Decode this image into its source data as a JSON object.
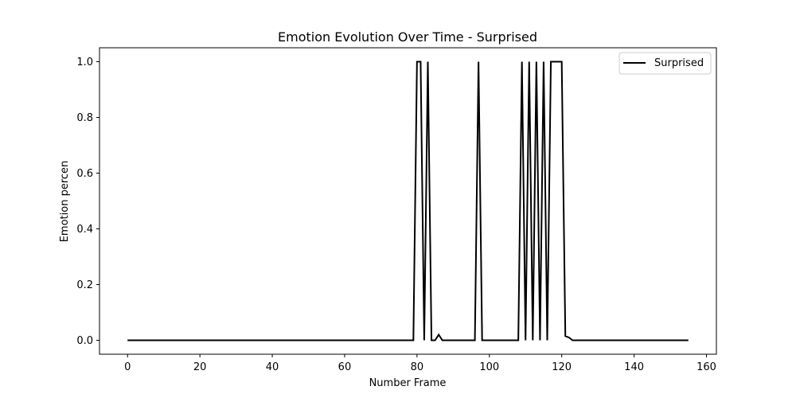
{
  "chart_data": {
    "type": "line",
    "title": "Emotion Evolution Over Time - Surprised",
    "xlabel": "Number Frame",
    "ylabel": "Emotion percen",
    "xlim": [
      -7.75,
      162.75
    ],
    "ylim": [
      -0.05,
      1.05
    ],
    "xticks": [
      0,
      20,
      40,
      60,
      80,
      100,
      120,
      140,
      160
    ],
    "yticks": [
      0.0,
      0.2,
      0.4,
      0.6,
      0.8,
      1.0
    ],
    "xtick_labels": [
      "0",
      "20",
      "40",
      "60",
      "80",
      "100",
      "120",
      "140",
      "160"
    ],
    "ytick_labels": [
      "0.0",
      "0.2",
      "0.4",
      "0.6",
      "0.8",
      "1.0"
    ],
    "grid": false,
    "legend_position": "top-right",
    "colors": {
      "Surprised": "#000000"
    },
    "series": [
      {
        "name": "Surprised",
        "x": [
          0,
          1,
          2,
          3,
          4,
          5,
          6,
          7,
          8,
          9,
          10,
          11,
          12,
          13,
          14,
          15,
          16,
          17,
          18,
          19,
          20,
          21,
          22,
          23,
          24,
          25,
          26,
          27,
          28,
          29,
          30,
          31,
          32,
          33,
          34,
          35,
          36,
          37,
          38,
          39,
          40,
          41,
          42,
          43,
          44,
          45,
          46,
          47,
          48,
          49,
          50,
          51,
          52,
          53,
          54,
          55,
          56,
          57,
          58,
          59,
          60,
          61,
          62,
          63,
          64,
          65,
          66,
          67,
          68,
          69,
          70,
          71,
          72,
          73,
          74,
          75,
          76,
          77,
          78,
          79,
          80,
          81,
          82,
          83,
          84,
          85,
          86,
          87,
          88,
          89,
          90,
          91,
          92,
          93,
          94,
          95,
          96,
          97,
          98,
          99,
          100,
          101,
          102,
          103,
          104,
          105,
          106,
          107,
          108,
          109,
          110,
          111,
          112,
          113,
          114,
          115,
          116,
          117,
          118,
          119,
          120,
          121,
          122,
          123,
          124,
          125,
          126,
          127,
          128,
          129,
          130,
          131,
          132,
          133,
          134,
          135,
          136,
          137,
          138,
          139,
          140,
          141,
          142,
          143,
          144,
          145,
          146,
          147,
          148,
          149,
          150,
          151,
          152,
          153,
          154,
          155
        ],
        "values": [
          0,
          0,
          0,
          0,
          0,
          0,
          0,
          0,
          0,
          0,
          0,
          0,
          0,
          0,
          0,
          0,
          0,
          0,
          0,
          0,
          0,
          0,
          0,
          0,
          0,
          0,
          0,
          0,
          0,
          0,
          0,
          0,
          0,
          0,
          0,
          0,
          0,
          0,
          0,
          0,
          0,
          0,
          0,
          0,
          0,
          0,
          0,
          0,
          0,
          0,
          0,
          0,
          0,
          0,
          0,
          0,
          0,
          0,
          0,
          0,
          0,
          0,
          0,
          0,
          0,
          0,
          0,
          0,
          0,
          0,
          0,
          0,
          0,
          0,
          0,
          0,
          0,
          0,
          0,
          0,
          1,
          1,
          0,
          1,
          0,
          0,
          0.02,
          0,
          0,
          0,
          0,
          0,
          0,
          0,
          0,
          0,
          0,
          1,
          0,
          0,
          0,
          0,
          0,
          0,
          0,
          0,
          0,
          0,
          0,
          1,
          0,
          1,
          0,
          1,
          0,
          1,
          0,
          1,
          1,
          1,
          1,
          0.015,
          0.01,
          0,
          0,
          0,
          0,
          0,
          0,
          0,
          0,
          0,
          0,
          0,
          0,
          0,
          0,
          0,
          0,
          0,
          0,
          0,
          0,
          0,
          0,
          0,
          0,
          0,
          0,
          0,
          0,
          0,
          0,
          0,
          0,
          0
        ]
      }
    ]
  }
}
